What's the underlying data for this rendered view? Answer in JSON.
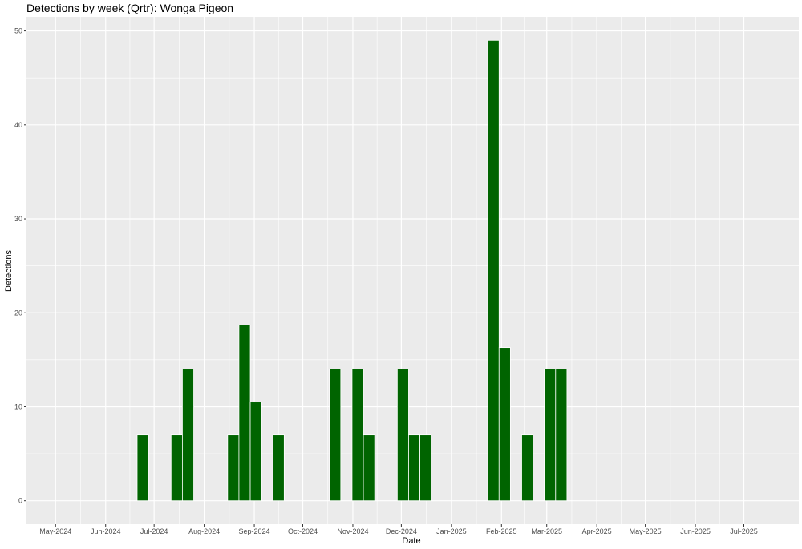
{
  "chart_data": {
    "type": "bar",
    "title": "Detections by week (Qrtr): Wonga Pigeon",
    "xlabel": "Date",
    "ylabel": "Detections",
    "ylim": [
      -2.5,
      51.5
    ],
    "xlim": [
      "2024-04-13",
      "2025-08-04"
    ],
    "y_ticks": [
      0,
      10,
      20,
      30,
      40,
      50
    ],
    "x_ticks": [
      {
        "date": "2024-05-01",
        "label": "May-2024"
      },
      {
        "date": "2024-06-01",
        "label": "Jun-2024"
      },
      {
        "date": "2024-07-01",
        "label": "Jul-2024"
      },
      {
        "date": "2024-08-01",
        "label": "Aug-2024"
      },
      {
        "date": "2024-09-01",
        "label": "Sep-2024"
      },
      {
        "date": "2024-10-01",
        "label": "Oct-2024"
      },
      {
        "date": "2024-11-01",
        "label": "Nov-2024"
      },
      {
        "date": "2024-12-01",
        "label": "Dec-2024"
      },
      {
        "date": "2025-01-01",
        "label": "Jan-2025"
      },
      {
        "date": "2025-02-01",
        "label": "Feb-2025"
      },
      {
        "date": "2025-03-01",
        "label": "Mar-2025"
      },
      {
        "date": "2025-04-01",
        "label": "Apr-2025"
      },
      {
        "date": "2025-05-01",
        "label": "May-2025"
      },
      {
        "date": "2025-06-01",
        "label": "Jun-2025"
      },
      {
        "date": "2025-07-01",
        "label": "Jul-2025"
      }
    ],
    "bar_color": "#006400",
    "panel_color": "#ebebeb",
    "grid": true,
    "bars": [
      {
        "date": "2024-06-24",
        "value": 7
      },
      {
        "date": "2024-07-15",
        "value": 7
      },
      {
        "date": "2024-07-22",
        "value": 14
      },
      {
        "date": "2024-08-19",
        "value": 7
      },
      {
        "date": "2024-08-26",
        "value": 18.7
      },
      {
        "date": "2024-09-02",
        "value": 10.5
      },
      {
        "date": "2024-09-16",
        "value": 7
      },
      {
        "date": "2024-10-21",
        "value": 14
      },
      {
        "date": "2024-11-04",
        "value": 14
      },
      {
        "date": "2024-11-11",
        "value": 7
      },
      {
        "date": "2024-12-02",
        "value": 14
      },
      {
        "date": "2024-12-09",
        "value": 7
      },
      {
        "date": "2024-12-16",
        "value": 7
      },
      {
        "date": "2025-01-27",
        "value": 49
      },
      {
        "date": "2025-02-03",
        "value": 16.3
      },
      {
        "date": "2025-02-17",
        "value": 7
      },
      {
        "date": "2025-03-03",
        "value": 14
      },
      {
        "date": "2025-03-10",
        "value": 14
      }
    ]
  }
}
